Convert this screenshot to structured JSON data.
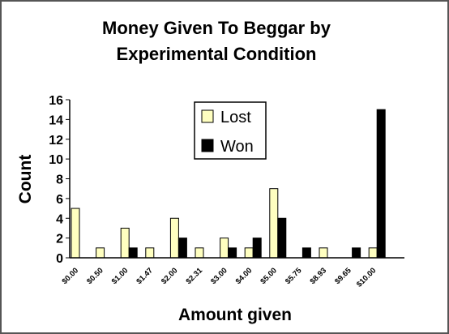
{
  "chart_data": {
    "type": "bar",
    "title_line1": "Money Given To Beggar by",
    "title_line2": "Experimental Condition",
    "xlabel": "Amount given",
    "ylabel": "Count",
    "ylim": [
      0,
      16
    ],
    "yticks": [
      0,
      2,
      4,
      6,
      8,
      10,
      12,
      14,
      16
    ],
    "grid": false,
    "legend_position": "upper-center",
    "categories": [
      "$0.00",
      "$0.50",
      "$1.00",
      "$1.47",
      "$2.00",
      "$2.31",
      "$3.00",
      "$4.00",
      "$5.00",
      "$5.75",
      "$8.93",
      "$9.65",
      "$10.00"
    ],
    "series": [
      {
        "name": "Lost",
        "color": "#ffffc0",
        "values": [
          5,
          1,
          3,
          1,
          4,
          1,
          2,
          1,
          7,
          0,
          1,
          0,
          1
        ]
      },
      {
        "name": "Won",
        "color": "#000000",
        "values": [
          0,
          0,
          1,
          0,
          2,
          0,
          1,
          2,
          4,
          1,
          0,
          1,
          15
        ]
      }
    ]
  }
}
